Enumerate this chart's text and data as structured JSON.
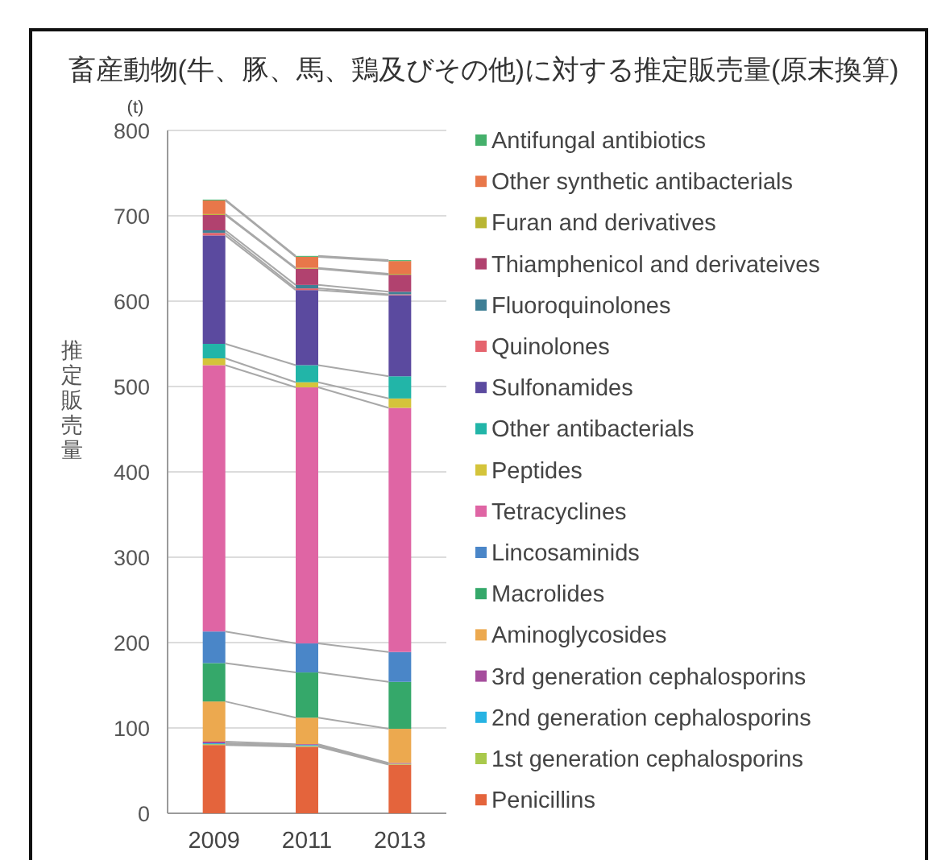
{
  "chart_data": {
    "type": "bar",
    "title": "畜産動物(牛、豚、馬、鶏及びその他)に対する推定販売量(原末換算)",
    "ylabel": "推定販売量",
    "annotations": [
      "(t)"
    ],
    "categories": [
      "2009",
      "2011",
      "2013"
    ],
    "stacked": true,
    "ylim": [
      0,
      800
    ],
    "yticks": [
      0,
      100,
      200,
      300,
      400,
      500,
      600,
      700,
      800
    ],
    "grid": "y",
    "legend": "right",
    "series": [
      {
        "name": "Penicillins",
        "color": "#e4643c",
        "values": [
          80,
          78,
          57
        ]
      },
      {
        "name": "1st generation cephalosporins",
        "color": "#a9c94c",
        "values": [
          1,
          1,
          1
        ]
      },
      {
        "name": "2nd generation cephalosporins",
        "color": "#27b3e3",
        "values": [
          1,
          1,
          0
        ]
      },
      {
        "name": "3rd generation cephalosporins",
        "color": "#a54d9c",
        "values": [
          2,
          1,
          1
        ]
      },
      {
        "name": "Aminoglycosides",
        "color": "#eca94f",
        "values": [
          47,
          31,
          40
        ]
      },
      {
        "name": "Macrolides",
        "color": "#35a86a",
        "values": [
          45,
          53,
          55
        ]
      },
      {
        "name": "Lincosaminids",
        "color": "#4a86c8",
        "values": [
          37,
          34,
          35
        ]
      },
      {
        "name": "Tetracyclines",
        "color": "#df65a4",
        "values": [
          312,
          300,
          286
        ]
      },
      {
        "name": "Peptides",
        "color": "#d4c43b",
        "values": [
          8,
          6,
          11
        ]
      },
      {
        "name": "Other antibacterials",
        "color": "#22b5a8",
        "values": [
          17,
          20,
          26
        ]
      },
      {
        "name": "Sulfonamides",
        "color": "#5b4a9f",
        "values": [
          127,
          88,
          95
        ]
      },
      {
        "name": "Quinolones",
        "color": "#e5646e",
        "values": [
          3,
          2,
          1
        ]
      },
      {
        "name": "Fluoroquinolones",
        "color": "#3f7f95",
        "values": [
          3,
          4,
          3
        ]
      },
      {
        "name": "Thiamphenicol and derivateives",
        "color": "#b1426f",
        "values": [
          18,
          19,
          20
        ]
      },
      {
        "name": "Furan and derivatives",
        "color": "#b9b633",
        "values": [
          1,
          1,
          1
        ]
      },
      {
        "name": "Other synthetic antibacterials",
        "color": "#e8774a",
        "values": [
          16,
          13,
          15
        ]
      },
      {
        "name": "Antifungal antibiotics",
        "color": "#45b06b",
        "values": [
          1,
          1,
          1
        ]
      }
    ]
  }
}
